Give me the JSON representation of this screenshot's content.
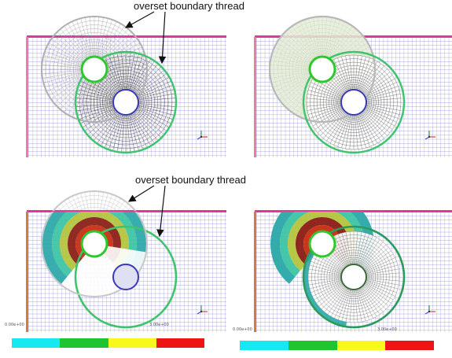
{
  "annotations": {
    "top": "overset boundary thread",
    "bottom": "overset boundary thread"
  },
  "colorbar": {
    "left_ticks": [
      "0.00e+00",
      "3.00e+00"
    ],
    "right_ticks": [
      "0.00e+00",
      "3.00e+00"
    ],
    "colors": [
      "#18e8f0",
      "#1fc431",
      "#f8f81c",
      "#ec1414"
    ]
  },
  "colors": {
    "mesh_bg": "#8a8ad8",
    "wall_top": "#e0389a",
    "wall_left_top": "#f07aa6",
    "wall_left_bottom": "#d87a3a",
    "ring_green": "#3ec46a",
    "ring_blue": "#3a3ab8"
  }
}
